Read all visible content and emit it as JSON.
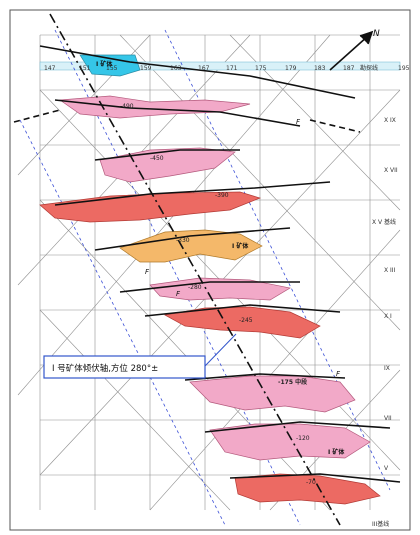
{
  "map": {
    "top_ticks": [
      "147",
      "151",
      "155",
      "159",
      "163",
      "167",
      "171",
      "175",
      "179",
      "183",
      "187",
      "195"
    ],
    "top_label": "勘探线",
    "right_labels": [
      "X IX",
      "X VII",
      "X V 基线",
      "X III",
      "X I",
      "IX",
      "VII",
      "V",
      "III基线"
    ],
    "north_label": "N",
    "level_labels": [
      "-490",
      "-450",
      "-390",
      "-330",
      "-280",
      "-245",
      "-175 中段",
      "-120",
      "-70"
    ],
    "ore_body_labels": [
      "I 矿体",
      "I 矿体",
      "I 矿体"
    ],
    "fault_labels": [
      "F",
      "F",
      "F",
      "F"
    ],
    "callout_text": "I 号矿体倾伏轴,方位 280°±",
    "colors": {
      "grid": "#8f8f8f",
      "dashed_blue": "#3b4fd6",
      "ore_pink": "#f2a9c8",
      "ore_red": "#ec6a63",
      "ore_orange": "#f4b86a",
      "ore_cyan": "#35c6e8",
      "callout_border": "#3356cc"
    }
  }
}
